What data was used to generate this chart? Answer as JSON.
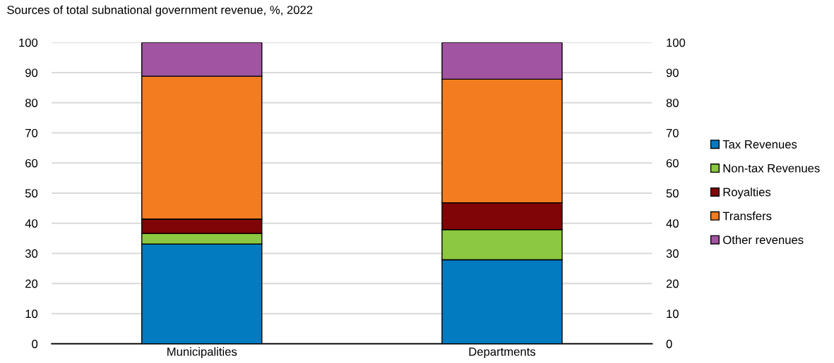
{
  "chart_data": {
    "type": "bar",
    "stacked": true,
    "subtitle": "Sources of total subnational government revenue, %, 2022",
    "categories": [
      "Municipalities",
      "Departments"
    ],
    "series": [
      {
        "name": "Tax Revenues",
        "color": "#037bc1",
        "values": [
          33.1,
          27.9
        ]
      },
      {
        "name": "Non-tax Revenues",
        "color": "#8cc841",
        "values": [
          3.5,
          10.0
        ]
      },
      {
        "name": "Royalties",
        "color": "#7f0506",
        "values": [
          4.8,
          8.9
        ]
      },
      {
        "name": "Transfers",
        "color": "#f47c20",
        "values": [
          47.4,
          41.0
        ]
      },
      {
        "name": "Other revenues",
        "color": "#a154a1",
        "values": [
          11.2,
          12.2
        ]
      }
    ],
    "ylim": [
      0,
      100
    ],
    "yticks": [
      0,
      10,
      20,
      30,
      40,
      50,
      60,
      70,
      80,
      90,
      100
    ],
    "y2lim": [
      0,
      100
    ],
    "y2ticks": [
      0,
      10,
      20,
      30,
      40,
      50,
      60,
      70,
      80,
      90,
      100
    ],
    "grid": "y",
    "legend": "right"
  }
}
